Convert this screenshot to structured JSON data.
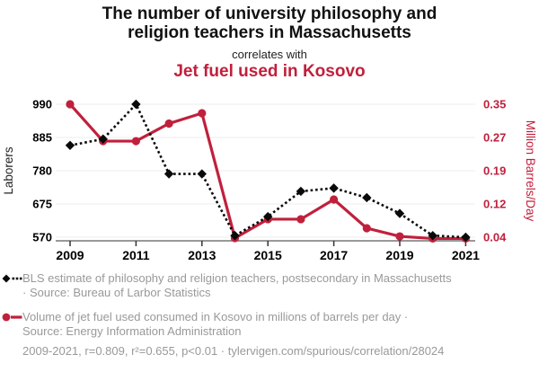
{
  "title": {
    "line1": "The number of university philosophy and",
    "line2": "religion teachers in Massachusetts",
    "connector": "correlates with",
    "secondary": "Jet fuel used in Kosovo"
  },
  "colors": {
    "accent_red": "#c0203c",
    "series_black": "#0a0a0a",
    "legend_gray": "#999999",
    "gridline": "#ededed",
    "axis": "#333333"
  },
  "chart": {
    "left_axis": {
      "title": "Laborers",
      "tick_labels": [
        "990",
        "885",
        "780",
        "675",
        "570"
      ],
      "tick_values": [
        990,
        885,
        780,
        675,
        570
      ]
    },
    "right_axis": {
      "title": "Million Barrels/Day",
      "tick_labels": [
        "0.35",
        "0.27",
        "0.19",
        "0.12",
        "0.04"
      ]
    },
    "x_axis": {
      "tick_years": [
        2009,
        2011,
        2013,
        2015,
        2017,
        2019,
        2021
      ]
    }
  },
  "chart_data": {
    "type": "line",
    "title": "The number of university philosophy and religion teachers in Massachusetts correlates with Jet fuel used in Kosovo",
    "x": [
      2009,
      2010,
      2011,
      2012,
      2013,
      2014,
      2015,
      2016,
      2017,
      2018,
      2019,
      2020,
      2021
    ],
    "series": [
      {
        "name": "BLS estimate of philosophy and religion teachers, postsecondary in Massachusetts",
        "axis": "left",
        "marker": "diamond",
        "line": "dotted",
        "color": "#0a0a0a",
        "values": [
          860,
          880,
          990,
          770,
          770,
          575,
          635,
          715,
          725,
          695,
          645,
          575,
          570
        ]
      },
      {
        "name": "Volume of jet fuel used consumed in Kosovo in millions of barrels per day",
        "axis": "right",
        "marker": "circle",
        "line": "solid",
        "color": "#c0203c",
        "values": [
          0.35,
          0.264,
          0.264,
          0.305,
          0.329,
          0.038,
          0.082,
          0.082,
          0.128,
          0.061,
          0.042,
          0.037,
          0.037
        ]
      }
    ],
    "xlabel": "",
    "ylabel_left": "Laborers",
    "ylabel_right": "Million Barrels/Day",
    "left_ylim": [
      570,
      990
    ],
    "right_ylim": [
      0.04,
      0.35
    ],
    "grid": "horizontal",
    "legend_position": "below"
  },
  "legend": {
    "items": [
      {
        "line1": "BLS estimate of philosophy and religion teachers, postsecondary in Massachusetts",
        "line2": "· Source: Bureau of Larbor Statistics"
      },
      {
        "line1": "Volume of jet fuel used consumed in Kosovo in millions of barrels per day ·",
        "line2": "Source: Energy Information Administration"
      }
    ]
  },
  "footer": {
    "stats": "2009-2021, r=0.809, r²=0.655, p<0.01 · tylervigen.com/spurious/correlation/28024"
  }
}
